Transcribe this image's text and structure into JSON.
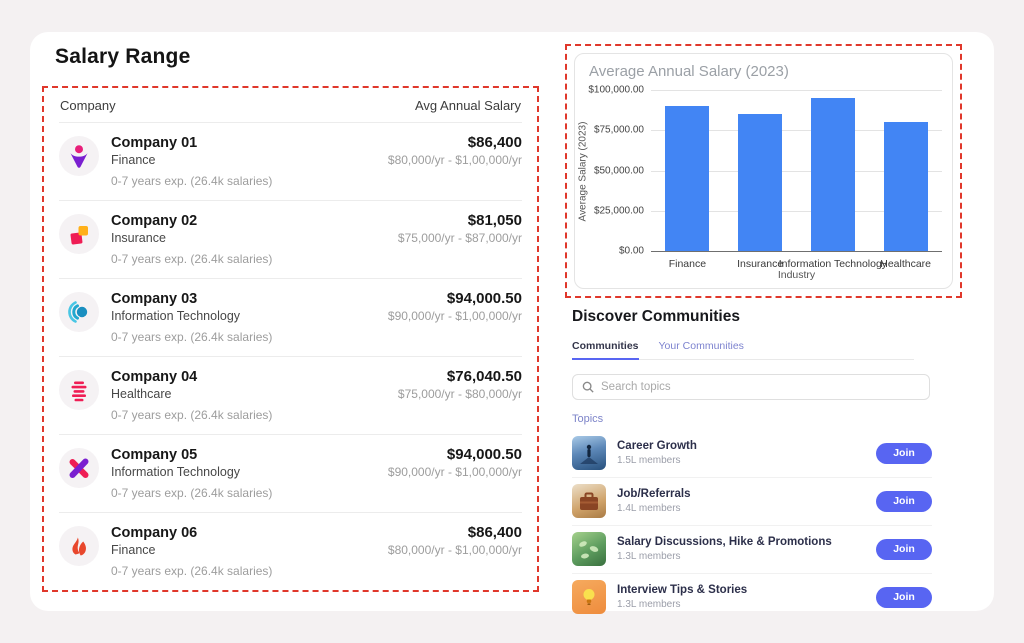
{
  "page": {
    "background": "#f4f1f2",
    "card_background": "#ffffff",
    "dashed_border_color": "#e0372b",
    "accent_indigo": "#5865f2"
  },
  "salary_section": {
    "title": "Salary Range",
    "table": {
      "col_company": "Company",
      "col_salary": "Avg Annual Salary",
      "rows": [
        {
          "name": "Company 01",
          "industry": "Finance",
          "exp": "0-7 years exp. (26.4k salaries)",
          "avg": "$86,400",
          "range": "$80,000/yr - $1,00,000/yr",
          "icon": "person-logo"
        },
        {
          "name": "Company 02",
          "industry": "Insurance",
          "exp": "0-7 years exp. (26.4k salaries)",
          "avg": "$81,050",
          "range": "$75,000/yr - $87,000/yr",
          "icon": "squares-logo"
        },
        {
          "name": "Company 03",
          "industry": "Information Technology",
          "exp": "0-7 years exp. (26.4k salaries)",
          "avg": "$94,000.50",
          "range": "$90,000/yr - $1,00,000/yr",
          "icon": "rings-logo"
        },
        {
          "name": "Company 04",
          "industry": "Healthcare",
          "exp": "0-7 years exp. (26.4k salaries)",
          "avg": "$76,040.50",
          "range": "$75,000/yr - $80,000/yr",
          "icon": "bars-logo"
        },
        {
          "name": "Company 05",
          "industry": "Information Technology",
          "exp": "0-7 years exp. (26.4k salaries)",
          "avg": "$94,000.50",
          "range": "$90,000/yr - $1,00,000/yr",
          "icon": "cross-logo"
        },
        {
          "name": "Company 06",
          "industry": "Finance",
          "exp": "0-7 years exp. (26.4k salaries)",
          "avg": "$86,400",
          "range": "$80,000/yr - $1,00,000/yr",
          "icon": "flame-logo"
        }
      ]
    }
  },
  "chart_data": {
    "type": "bar",
    "title": "Average Annual Salary (2023)",
    "categories": [
      "Finance",
      "Insurance",
      "Information Technology",
      "Healthcare"
    ],
    "values": [
      90000,
      85000,
      95000,
      80000
    ],
    "xlabel": "Industry",
    "ylabel": "Average Salary (2023)",
    "ylim": [
      0,
      100000
    ],
    "yticks": [
      "$100,000.00",
      "$75,000.00",
      "$50,000.00",
      "$25,000.00",
      "$0.00"
    ],
    "ytick_values": [
      100000,
      75000,
      50000,
      25000,
      0
    ],
    "bar_color": "#4285f4",
    "grid": true,
    "legend": false
  },
  "communities": {
    "title": "Discover Communities",
    "tabs": [
      {
        "label": "Communities",
        "active": true
      },
      {
        "label": "Your Communities",
        "active": false
      }
    ],
    "search_placeholder": "Search topics",
    "topics_label": "Topics",
    "topics": [
      {
        "title": "Career Growth",
        "members": "1.5L members",
        "join_label": "Join",
        "icon": "career-growth-image"
      },
      {
        "title": "Job/Referrals",
        "members": "1.4L members",
        "join_label": "Join",
        "icon": "briefcase-image"
      },
      {
        "title": "Salary Discussions, Hike & Promotions",
        "members": "1.3L members",
        "join_label": "Join",
        "icon": "money-leaves-image"
      },
      {
        "title": "Interview Tips & Stories",
        "members": "1.3L members",
        "join_label": "Join",
        "icon": "lightbulb-image"
      }
    ]
  }
}
